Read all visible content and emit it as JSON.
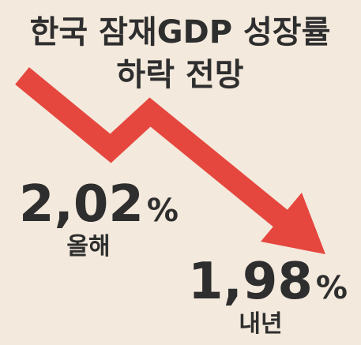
{
  "title": {
    "line1": "한국 잠재GDP 성장률",
    "line2": "하락 전망"
  },
  "current": {
    "value": "2,02",
    "unit": "%",
    "label": "올해"
  },
  "next": {
    "value": "1,98",
    "unit": "%",
    "label": "내년"
  }
}
